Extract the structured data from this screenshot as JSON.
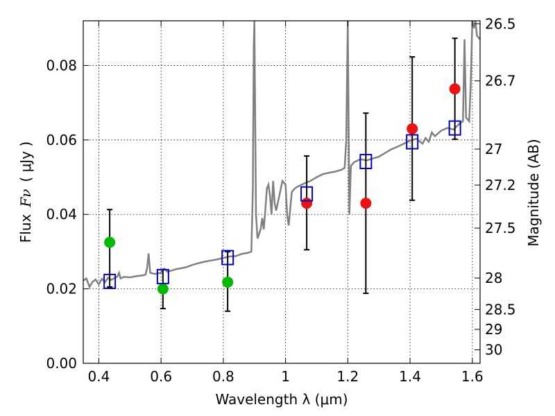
{
  "chart_data": {
    "type": "scatter",
    "xlabel": "Wavelength  λ (μm)",
    "ylabel_prefix": "Flux",
    "ylabel_symbol": "Fν",
    "ylabel_unit": "( μJy )",
    "y2label": "Magnitude (AB)",
    "xlim": [
      0.35,
      1.625
    ],
    "ylim": [
      0.0,
      0.092
    ],
    "grid": true,
    "x_ticks": [
      0.4,
      0.6,
      0.8,
      1.0,
      1.2,
      1.4,
      1.6
    ],
    "x_tick_labels": [
      "0.4",
      "0.6",
      "0.8",
      "1",
      "1.2",
      "1.4",
      "1.6"
    ],
    "y_ticks": [
      0.0,
      0.02,
      0.04,
      0.06,
      0.08
    ],
    "y_tick_labels": [
      "0.00",
      "0.02",
      "0.04",
      "0.06",
      "0.08"
    ],
    "mag_ticks": [
      26.5,
      26.7,
      27,
      27.2,
      27.5,
      28,
      28.5,
      29,
      30
    ],
    "mag_tick_labels": [
      "26.5",
      "26.7",
      "27",
      "27.2",
      "27.5",
      "28",
      "28.5",
      "29",
      "30"
    ],
    "colors": {
      "green": "#00bb00",
      "red": "#ee1111",
      "square": "#0000cc",
      "sed_line": "#808080",
      "errorbar": "#000000"
    },
    "series": [
      {
        "marker": "circle-green",
        "points": [
          {
            "x": 0.435,
            "y": 0.0325
          },
          {
            "x": 0.606,
            "y": 0.02
          },
          {
            "x": 0.814,
            "y": 0.0218
          }
        ]
      },
      {
        "marker": "circle-red",
        "points": [
          {
            "x": 1.068,
            "y": 0.043
          },
          {
            "x": 1.258,
            "y": 0.043
          },
          {
            "x": 1.407,
            "y": 0.063
          },
          {
            "x": 1.544,
            "y": 0.0737
          }
        ]
      },
      {
        "marker": "square-blue",
        "points": [
          {
            "x": 0.435,
            "y": 0.022
          },
          {
            "x": 0.606,
            "y": 0.0233
          },
          {
            "x": 0.814,
            "y": 0.0284
          },
          {
            "x": 1.068,
            "y": 0.0455
          },
          {
            "x": 1.258,
            "y": 0.0542
          },
          {
            "x": 1.407,
            "y": 0.0595
          },
          {
            "x": 1.544,
            "y": 0.0632
          }
        ]
      }
    ],
    "errorbars": [
      {
        "x": 0.435,
        "low": 0.0205,
        "high": 0.0413
      },
      {
        "x": 0.606,
        "low": 0.0147,
        "high": 0.0252
      },
      {
        "x": 0.814,
        "low": 0.014,
        "high": 0.03
      },
      {
        "x": 1.068,
        "low": 0.0305,
        "high": 0.0557
      },
      {
        "x": 1.258,
        "low": 0.0188,
        "high": 0.0672
      },
      {
        "x": 1.407,
        "low": 0.0438,
        "high": 0.0823
      },
      {
        "x": 1.544,
        "low": 0.0602,
        "high": 0.0873
      }
    ],
    "sed": [
      [
        0.35,
        0.0222
      ],
      [
        0.36,
        0.0228
      ],
      [
        0.37,
        0.0205
      ],
      [
        0.38,
        0.0219
      ],
      [
        0.39,
        0.0225
      ],
      [
        0.4,
        0.0212
      ],
      [
        0.41,
        0.0227
      ],
      [
        0.42,
        0.0218
      ],
      [
        0.43,
        0.023
      ],
      [
        0.44,
        0.0224
      ],
      [
        0.45,
        0.0229
      ],
      [
        0.46,
        0.0233
      ],
      [
        0.465,
        0.0243
      ],
      [
        0.47,
        0.0228
      ],
      [
        0.48,
        0.0232
      ],
      [
        0.5,
        0.0231
      ],
      [
        0.52,
        0.0234
      ],
      [
        0.54,
        0.0236
      ],
      [
        0.55,
        0.0238
      ],
      [
        0.555,
        0.0255
      ],
      [
        0.56,
        0.0295
      ],
      [
        0.565,
        0.0243
      ],
      [
        0.58,
        0.024
      ],
      [
        0.6,
        0.0243
      ],
      [
        0.61,
        0.0254
      ],
      [
        0.62,
        0.0246
      ],
      [
        0.65,
        0.0253
      ],
      [
        0.68,
        0.0258
      ],
      [
        0.7,
        0.0264
      ],
      [
        0.72,
        0.0269
      ],
      [
        0.74,
        0.0273
      ],
      [
        0.76,
        0.0276
      ],
      [
        0.78,
        0.0279
      ],
      [
        0.8,
        0.0283
      ],
      [
        0.82,
        0.0287
      ],
      [
        0.84,
        0.0288
      ],
      [
        0.86,
        0.0294
      ],
      [
        0.88,
        0.0297
      ],
      [
        0.89,
        0.03
      ],
      [
        0.895,
        0.047
      ],
      [
        0.898,
        0.085
      ],
      [
        0.9,
        0.092
      ],
      [
        0.905,
        0.04
      ],
      [
        0.91,
        0.0335
      ],
      [
        0.92,
        0.036
      ],
      [
        0.925,
        0.039
      ],
      [
        0.93,
        0.036
      ],
      [
        0.935,
        0.041
      ],
      [
        0.94,
        0.047
      ],
      [
        0.945,
        0.048
      ],
      [
        0.95,
        0.045
      ],
      [
        0.955,
        0.04
      ],
      [
        0.96,
        0.049
      ],
      [
        0.965,
        0.043
      ],
      [
        0.97,
        0.041
      ],
      [
        0.98,
        0.045
      ],
      [
        0.99,
        0.049
      ],
      [
        1.0,
        0.048
      ],
      [
        1.005,
        0.04
      ],
      [
        1.01,
        0.037
      ],
      [
        1.02,
        0.046
      ],
      [
        1.03,
        0.047
      ],
      [
        1.04,
        0.0475
      ],
      [
        1.06,
        0.0483
      ],
      [
        1.08,
        0.049
      ],
      [
        1.1,
        0.05
      ],
      [
        1.12,
        0.0508
      ],
      [
        1.14,
        0.0512
      ],
      [
        1.16,
        0.0515
      ],
      [
        1.18,
        0.052
      ],
      [
        1.19,
        0.0525
      ],
      [
        1.195,
        0.06
      ],
      [
        1.2,
        0.092
      ],
      [
        1.205,
        0.04
      ],
      [
        1.21,
        0.053
      ],
      [
        1.22,
        0.054
      ],
      [
        1.24,
        0.0548
      ],
      [
        1.26,
        0.0545
      ],
      [
        1.28,
        0.055
      ],
      [
        1.3,
        0.0555
      ],
      [
        1.32,
        0.0565
      ],
      [
        1.34,
        0.0575
      ],
      [
        1.36,
        0.0582
      ],
      [
        1.38,
        0.059
      ],
      [
        1.4,
        0.0598
      ],
      [
        1.42,
        0.0603
      ],
      [
        1.44,
        0.059
      ],
      [
        1.45,
        0.0605
      ],
      [
        1.46,
        0.0595
      ],
      [
        1.47,
        0.062
      ],
      [
        1.48,
        0.061
      ],
      [
        1.5,
        0.0625
      ],
      [
        1.52,
        0.0632
      ],
      [
        1.54,
        0.0628
      ],
      [
        1.56,
        0.0645
      ],
      [
        1.57,
        0.065
      ],
      [
        1.575,
        0.087
      ],
      [
        1.58,
        0.066
      ],
      [
        1.59,
        0.065
      ],
      [
        1.595,
        0.075
      ],
      [
        1.6,
        0.092
      ],
      [
        1.605,
        0.09
      ],
      [
        1.61,
        0.092
      ],
      [
        1.615,
        0.088
      ],
      [
        1.625,
        0.087
      ]
    ]
  }
}
